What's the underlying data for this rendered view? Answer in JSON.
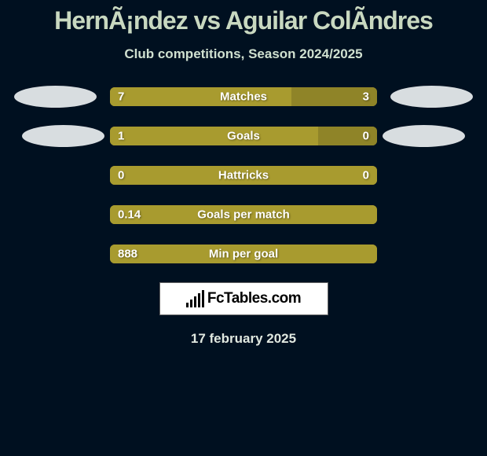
{
  "title": "HernÃ¡ndez vs Aguilar ColÃndres",
  "title_fontsize": 32,
  "title_color": "#c8d8c0",
  "subtitle": "Club competitions, Season 2024/2025",
  "subtitle_fontsize": 17,
  "subtitle_color": "#d0e0d0",
  "background_color": "#001020",
  "bar_track_width": 340,
  "bar_track_height": 24,
  "bar_left_color": "#a89b2f",
  "bar_right_color": "#8f8428",
  "bar_text_color": "#ffffff",
  "bubble_color": "#d8dde0",
  "rows": [
    {
      "metric": "Matches",
      "left_val": "7",
      "right_val": "3",
      "left_pct": 68,
      "right_pct": 32,
      "show_bubbles": true
    },
    {
      "metric": "Goals",
      "left_val": "1",
      "right_val": "0",
      "left_pct": 78,
      "right_pct": 22,
      "show_bubbles": true
    },
    {
      "metric": "Hattricks",
      "left_val": "0",
      "right_val": "0",
      "left_pct": 100,
      "right_pct": 0,
      "show_bubbles": false
    },
    {
      "metric": "Goals per match",
      "left_val": "0.14",
      "right_val": "",
      "left_pct": 100,
      "right_pct": 0,
      "show_bubbles": false
    },
    {
      "metric": "Min per goal",
      "left_val": "888",
      "right_val": "",
      "left_pct": 100,
      "right_pct": 0,
      "show_bubbles": false
    }
  ],
  "logo": {
    "text": "FcTables.com",
    "box_bg": "#ffffff",
    "box_border": "#666666",
    "text_color": "#000000"
  },
  "date_text": "17 february 2025",
  "date_fontsize": 17,
  "date_color": "#e0e8e0"
}
